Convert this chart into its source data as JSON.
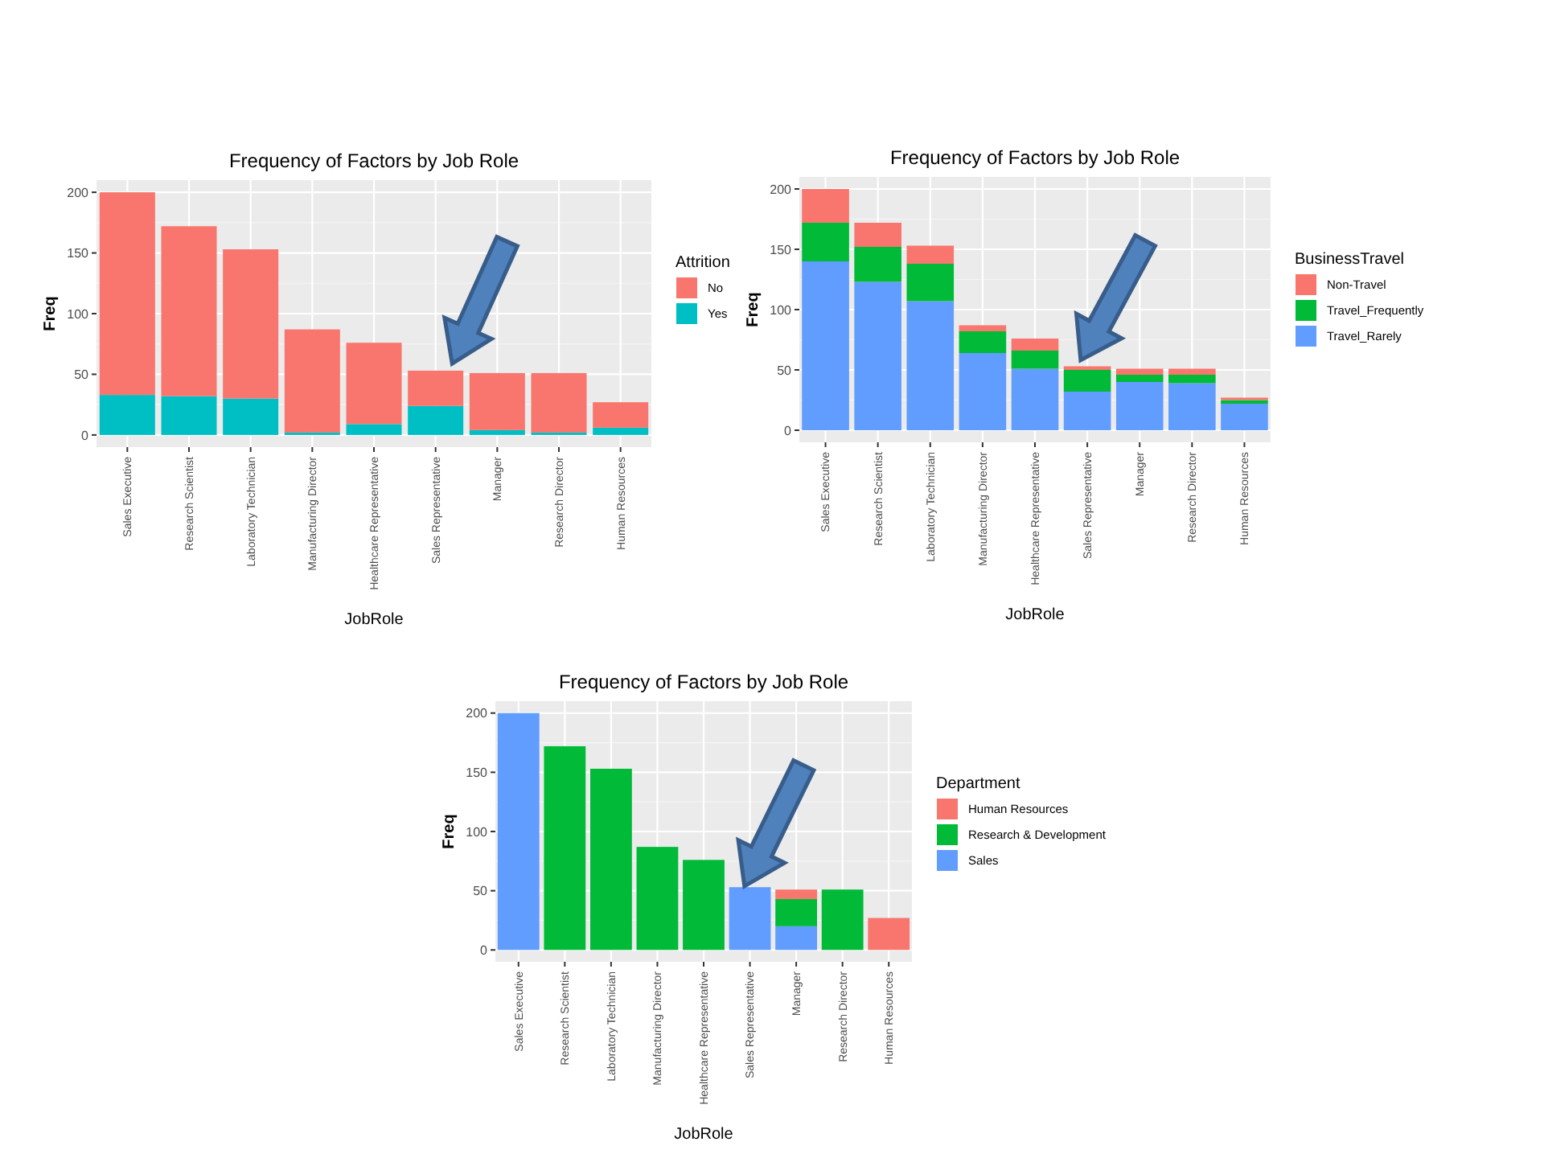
{
  "chart_data": [
    {
      "type": "bar",
      "stacked": true,
      "title": "Frequency of Factors by Job Role",
      "xlabel": "JobRole",
      "ylabel": "Freq",
      "legend_title": "Attrition",
      "legend": "right",
      "grid": true,
      "categories": [
        "Sales Executive",
        "Research Scientist",
        "Laboratory Technician",
        "Manufacturing Director",
        "Healthcare Representative",
        "Sales Representative",
        "Manager",
        "Research Director",
        "Human Resources"
      ],
      "ylim": [
        -10,
        210
      ],
      "yticks": [
        0,
        50,
        100,
        150,
        200
      ],
      "series": [
        {
          "name": "Yes",
          "color": "#00bfc4",
          "values": [
            33,
            32,
            30,
            2,
            9,
            24,
            4,
            2,
            6
          ]
        },
        {
          "name": "No",
          "color": "#f8766d",
          "values": [
            167,
            140,
            123,
            85,
            67,
            29,
            47,
            49,
            21
          ]
        }
      ]
    },
    {
      "type": "bar",
      "stacked": true,
      "title": "Frequency of Factors by Job Role",
      "xlabel": "JobRole",
      "ylabel": "Freq",
      "legend_title": "BusinessTravel",
      "legend": "right",
      "grid": true,
      "categories": [
        "Sales Executive",
        "Research Scientist",
        "Laboratory Technician",
        "Manufacturing Director",
        "Healthcare Representative",
        "Sales Representative",
        "Manager",
        "Research Director",
        "Human Resources"
      ],
      "ylim": [
        -10,
        210
      ],
      "yticks": [
        0,
        50,
        100,
        150,
        200
      ],
      "series": [
        {
          "name": "Travel_Rarely",
          "color": "#619cff",
          "values": [
            140,
            123,
            107,
            64,
            51,
            32,
            40,
            39,
            22
          ]
        },
        {
          "name": "Travel_Frequently",
          "color": "#00ba38",
          "values": [
            32,
            29,
            31,
            18,
            15,
            18,
            6,
            7,
            3
          ]
        },
        {
          "name": "Non-Travel",
          "color": "#f8766d",
          "values": [
            28,
            20,
            15,
            5,
            10,
            3,
            5,
            5,
            2
          ]
        }
      ]
    },
    {
      "type": "bar",
      "stacked": true,
      "title": "Frequency of Factors by Job Role",
      "xlabel": "JobRole",
      "ylabel": "Freq",
      "legend_title": "Department",
      "legend": "right",
      "grid": true,
      "categories": [
        "Sales Executive",
        "Research Scientist",
        "Laboratory Technician",
        "Manufacturing Director",
        "Healthcare Representative",
        "Sales Representative",
        "Manager",
        "Research Director",
        "Human Resources"
      ],
      "ylim": [
        -10,
        210
      ],
      "yticks": [
        0,
        50,
        100,
        150,
        200
      ],
      "series": [
        {
          "name": "Sales",
          "color": "#619cff",
          "values": [
            200,
            0,
            0,
            0,
            0,
            53,
            20,
            0,
            0
          ]
        },
        {
          "name": "Research & Development",
          "color": "#00ba38",
          "values": [
            0,
            172,
            153,
            87,
            76,
            0,
            23,
            51,
            0
          ]
        },
        {
          "name": "Human Resources",
          "color": "#f8766d",
          "values": [
            0,
            0,
            0,
            0,
            0,
            0,
            8,
            0,
            27
          ]
        }
      ]
    }
  ]
}
